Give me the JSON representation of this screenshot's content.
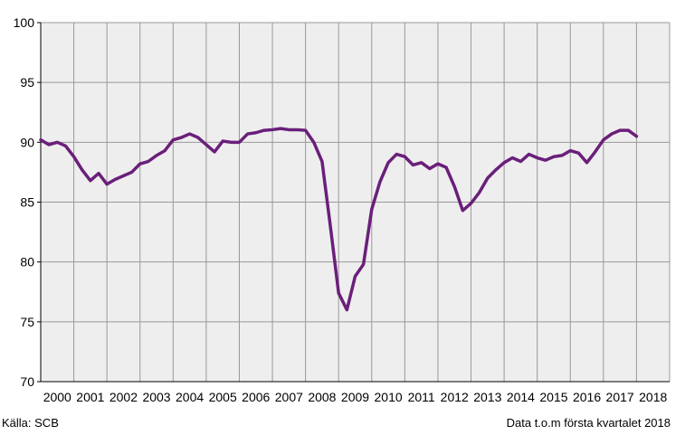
{
  "footer": {
    "source": "Källa:  SCB",
    "note": "Data t.o.m första kvartalet  2018"
  },
  "chart_data": {
    "type": "line",
    "title": "",
    "xlabel": "",
    "ylabel": "",
    "ylim": [
      70,
      100
    ],
    "yticks": [
      70,
      75,
      80,
      85,
      90,
      95,
      100
    ],
    "xlim": [
      2000,
      2019
    ],
    "xticks": [
      "2000",
      "2001",
      "2002",
      "2003",
      "2004",
      "2005",
      "2006",
      "2007",
      "2008",
      "2009",
      "2010",
      "2011",
      "2012",
      "2013",
      "2014",
      "2015",
      "2016",
      "2017",
      "2018"
    ],
    "grid": true,
    "colors": {
      "line": "#6a1f7a",
      "grid": "#999999",
      "plot_bg": "#eeeeee",
      "axis": "#000000"
    },
    "series": [
      {
        "x": [
          2000.0,
          2000.25,
          2000.5,
          2000.75,
          2001.0,
          2001.25,
          2001.5,
          2001.75,
          2002.0,
          2002.25,
          2002.5,
          2002.75,
          2003.0,
          2003.25,
          2003.5,
          2003.75,
          2004.0,
          2004.25,
          2004.5,
          2004.75,
          2005.0,
          2005.25,
          2005.5,
          2005.75,
          2006.0,
          2006.25,
          2006.5,
          2006.75,
          2007.0,
          2007.25,
          2007.5,
          2007.75,
          2008.0,
          2008.25,
          2008.5,
          2008.75,
          2009.0,
          2009.25,
          2009.5,
          2009.75,
          2010.0,
          2010.25,
          2010.5,
          2010.75,
          2011.0,
          2011.25,
          2011.5,
          2011.75,
          2012.0,
          2012.25,
          2012.5,
          2012.75,
          2013.0,
          2013.25,
          2013.5,
          2013.75,
          2014.0,
          2014.25,
          2014.5,
          2014.75,
          2015.0,
          2015.25,
          2015.5,
          2015.75,
          2016.0,
          2016.25,
          2016.5,
          2016.75,
          2017.0,
          2017.25,
          2017.5,
          2017.75,
          2018.0
        ],
        "values": [
          90.2,
          89.8,
          90.0,
          89.7,
          88.8,
          87.7,
          86.8,
          87.4,
          86.5,
          86.9,
          87.2,
          87.5,
          88.2,
          88.4,
          88.9,
          89.3,
          90.2,
          90.4,
          90.7,
          90.4,
          89.8,
          89.2,
          90.1,
          90.0,
          90.0,
          90.7,
          90.8,
          91.0,
          91.05,
          91.15,
          91.05,
          91.05,
          91.0,
          90.0,
          88.4,
          83.0,
          77.4,
          76.0,
          78.8,
          79.8,
          84.4,
          86.7,
          88.3,
          89.0,
          88.8,
          88.1,
          88.3,
          87.8,
          88.2,
          87.9,
          86.3,
          84.3,
          84.9,
          85.8,
          87.0,
          87.7,
          88.3,
          88.7,
          88.4,
          89.0,
          88.7,
          88.5,
          88.8,
          88.9,
          89.3,
          89.1,
          88.3,
          89.2,
          90.2,
          90.7,
          91.0,
          91.0,
          90.5
        ]
      }
    ]
  }
}
